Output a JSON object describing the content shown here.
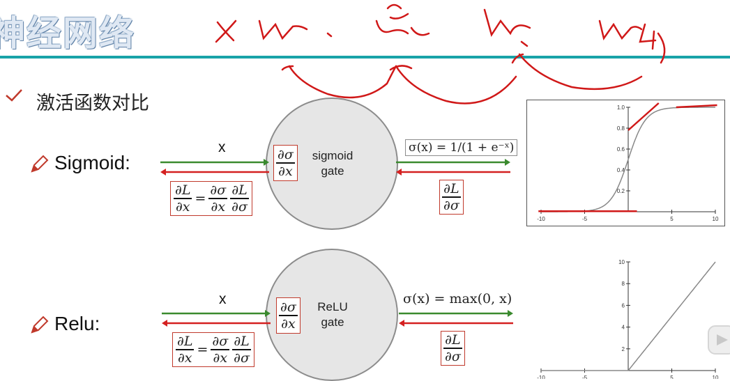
{
  "page": {
    "title": "神经网络",
    "subtitle": "激活函数对比"
  },
  "sigmoid": {
    "label": "Sigmoid:",
    "input": "x",
    "gate_line1": "sigmoid",
    "gate_line2": "gate",
    "local_grad": {
      "num": "∂σ",
      "den": "∂x"
    },
    "formula": "σ(x) = 1/(1 + e⁻ˣ)",
    "upstream": {
      "num": "∂L",
      "den": "∂σ"
    },
    "chain": {
      "lhs_num": "∂L",
      "lhs_den": "∂x",
      "eq": "=",
      "a_num": "∂σ",
      "a_den": "∂x",
      "b_num": "∂L",
      "b_den": "∂σ"
    }
  },
  "relu": {
    "label": "Relu:",
    "input": "x",
    "gate_line1": "ReLU",
    "gate_line2": "gate",
    "local_grad": {
      "num": "∂σ",
      "den": "∂x"
    },
    "formula": "σ(x) = max(0, x)",
    "upstream": {
      "num": "∂L",
      "den": "∂σ"
    },
    "chain": {
      "lhs_num": "∂L",
      "lhs_den": "∂x",
      "eq": "=",
      "a_num": "∂σ",
      "a_den": "∂x",
      "b_num": "∂L",
      "b_den": "∂σ"
    }
  },
  "chart_data": [
    {
      "type": "line",
      "name": "",
      "x_ticks": [
        "-10",
        "-5",
        "5",
        "10"
      ],
      "y_ticks": [
        "0.2",
        "0.4",
        "0.6",
        "0.8",
        "1.0"
      ],
      "xlim": [
        -10,
        10
      ],
      "ylim": [
        0,
        1
      ],
      "function": "sigmoid"
    },
    {
      "type": "line",
      "name": "",
      "x_ticks": [
        "-10",
        "-5",
        "5",
        "10"
      ],
      "y_ticks": [
        "2",
        "4",
        "6",
        "8",
        "10"
      ],
      "xlim": [
        -10,
        10
      ],
      "ylim": [
        0,
        10
      ],
      "function": "relu"
    }
  ],
  "colors": {
    "forward": "#3a8a2e",
    "backward": "#d42020",
    "teal": "#19a3a8",
    "ink": "#d01818"
  }
}
